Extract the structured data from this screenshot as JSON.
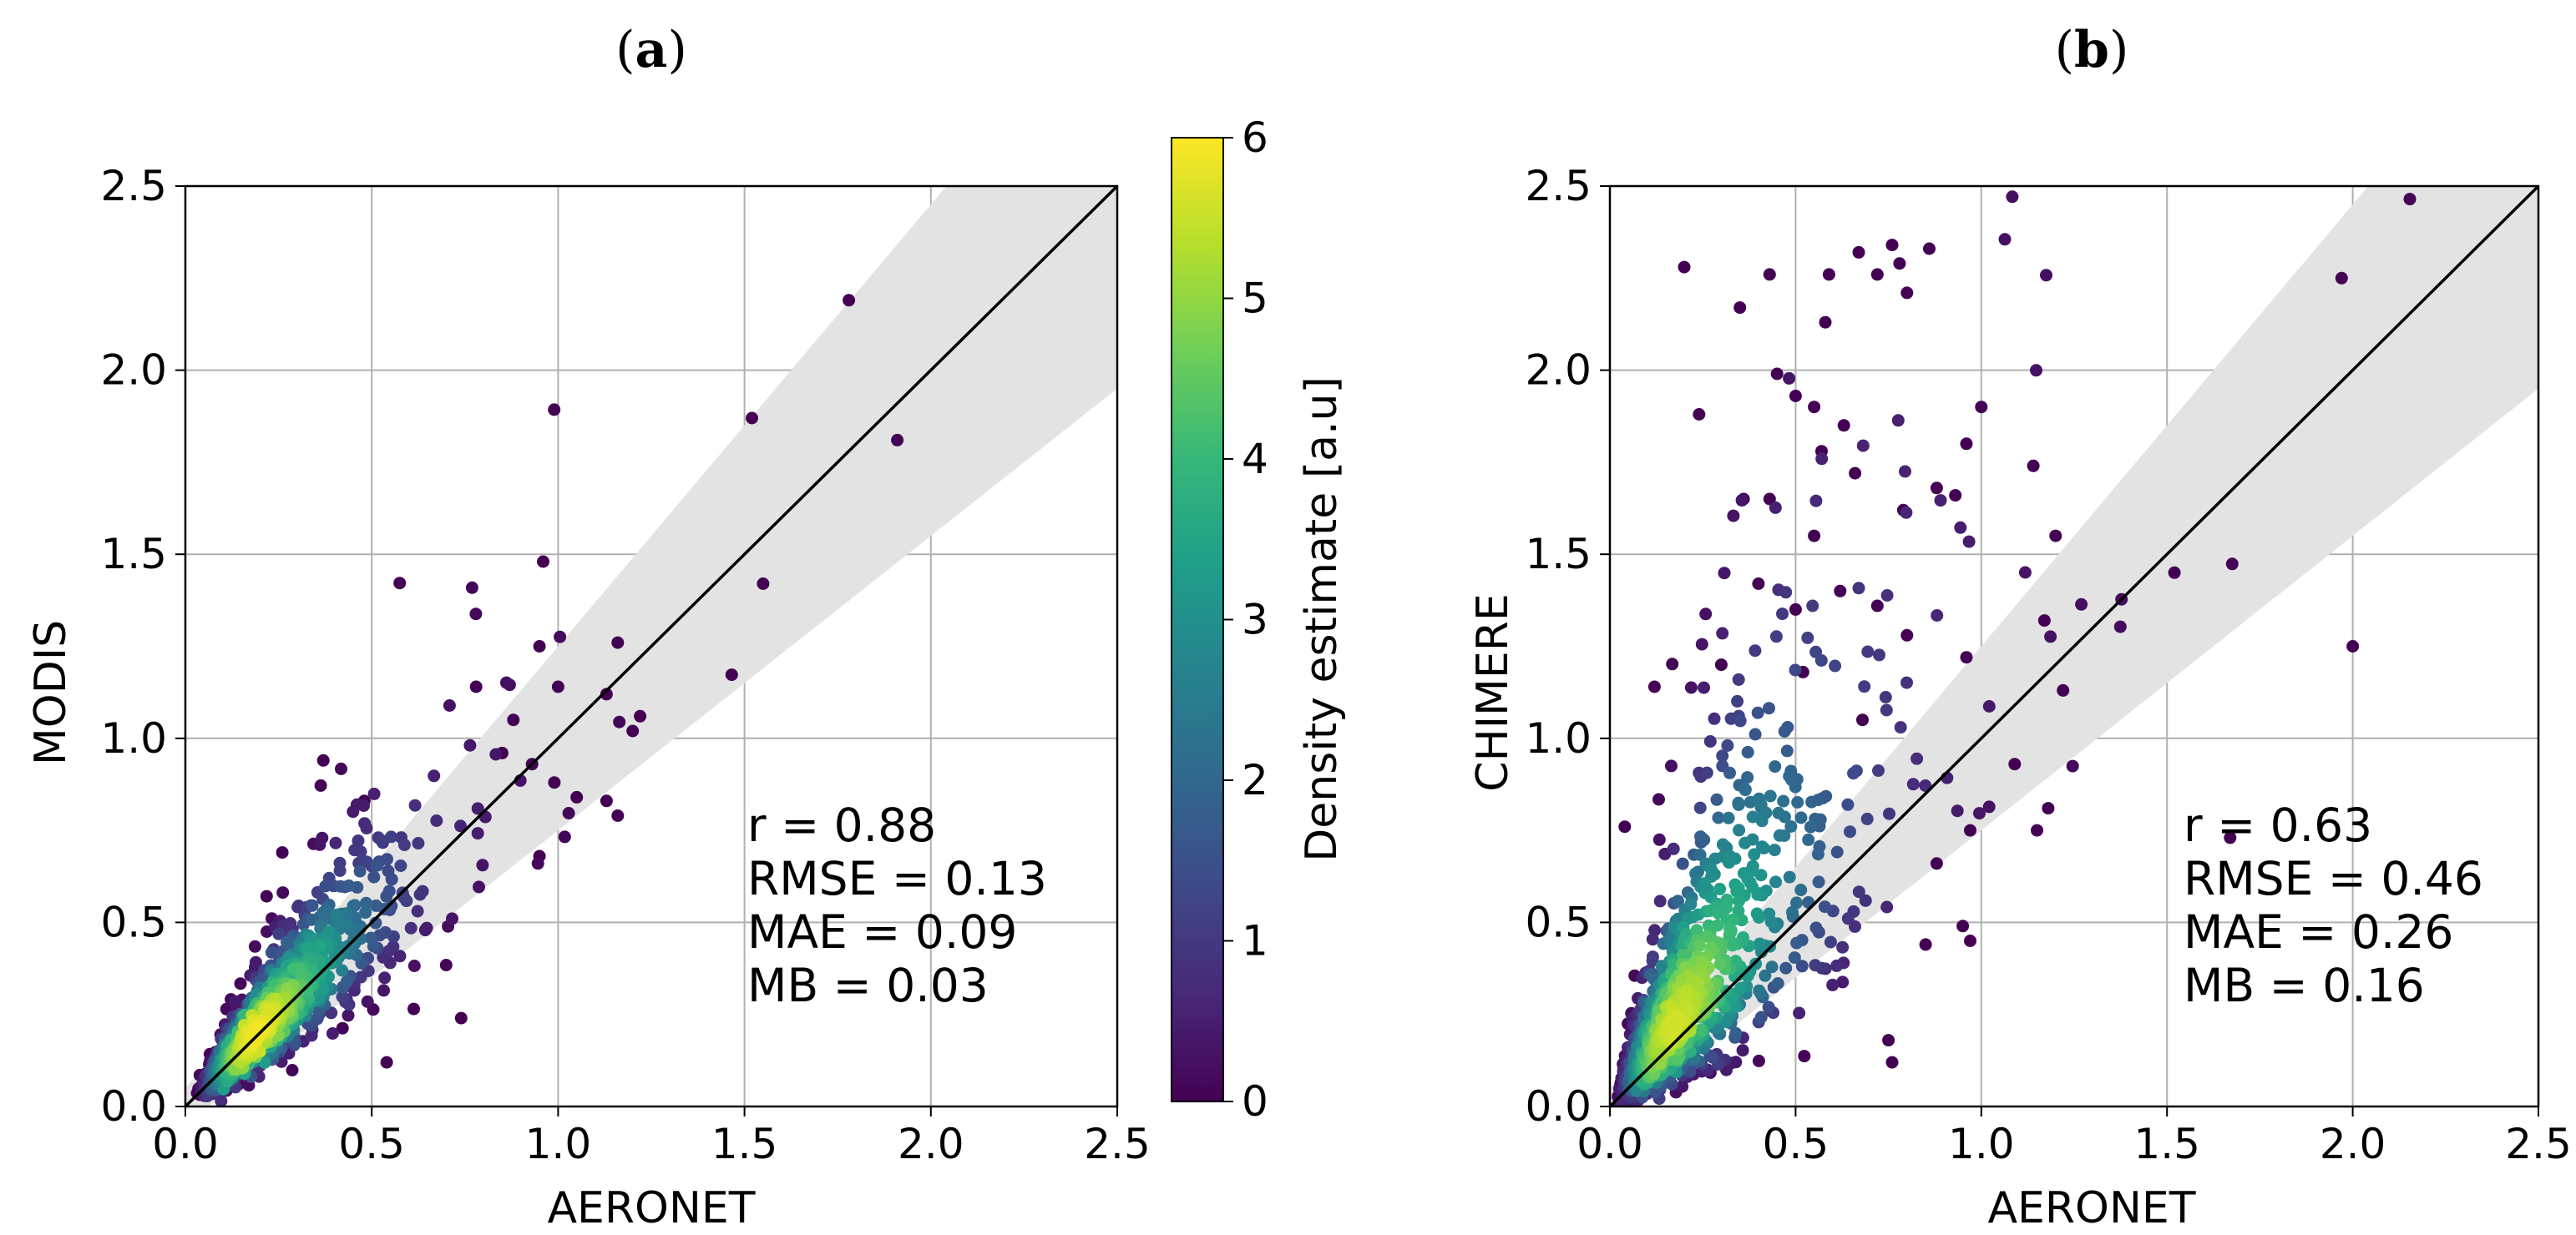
{
  "figure": {
    "colorbar": {
      "label": "Density estimate [a.u]",
      "ticks": [
        "0",
        "1",
        "2",
        "3",
        "4",
        "5",
        "6"
      ],
      "range": [
        0,
        6
      ],
      "colors": [
        "#440154",
        "#482878",
        "#3e4989",
        "#31688e",
        "#26828e",
        "#1f9e89",
        "#35b779",
        "#6ece58",
        "#b5de2b",
        "#fde725"
      ]
    },
    "style": {
      "grid_color": "#b0b0b0",
      "band_color": "#e3e3e3",
      "line_color": "#000000"
    }
  },
  "chart_data": [
    {
      "type": "scatter",
      "panel_label": "(a)",
      "panel_letter": "a",
      "xlabel": "AERONET",
      "ylabel": "MODIS",
      "xlim": [
        0,
        2.5
      ],
      "ylim": [
        0,
        2.5
      ],
      "xticks": [
        "0.0",
        "0.5",
        "1.0",
        "1.5",
        "2.0",
        "2.5"
      ],
      "yticks": [
        "0.0",
        "0.5",
        "1.0",
        "1.5",
        "2.0",
        "2.5"
      ],
      "grid": true,
      "reference_line": "1:1",
      "envelope": "±(0.05 + 0.2·x)",
      "stats": [
        "r = 0.88",
        "RMSE = 0.13",
        "MAE = 0.09",
        "MB = 0.03"
      ],
      "colormap": "viridis (density)",
      "cluster": {
        "n": 1300,
        "seed": 11,
        "xmu": -1.65,
        "xsig": 0.6,
        "ysig": 0.28,
        "ymul": 1.04,
        "dmax": 5.9
      },
      "outliers": [
        [
          1.78,
          2.19
        ],
        [
          1.52,
          1.87
        ],
        [
          1.91,
          1.81
        ],
        [
          1.55,
          1.42
        ],
        [
          0.96,
          1.48
        ],
        [
          1.16,
          1.26
        ],
        [
          0.95,
          1.25
        ],
        [
          1.22,
          1.06
        ],
        [
          1.2,
          1.02
        ],
        [
          1.13,
          1.12
        ],
        [
          1.0,
          1.14
        ],
        [
          0.78,
          1.14
        ],
        [
          1.05,
          0.84
        ],
        [
          1.13,
          0.83
        ],
        [
          1.16,
          0.79
        ],
        [
          0.99,
          0.88
        ],
        [
          0.93,
          0.93
        ],
        [
          0.37,
          0.94
        ],
        [
          0.95,
          0.68
        ],
        [
          0.48,
          0.83
        ],
        [
          0.74,
          0.24
        ],
        [
          0.54,
          0.12
        ],
        [
          0.26,
          0.69
        ],
        [
          0.85,
          0.96
        ],
        [
          0.88,
          1.05
        ]
      ]
    },
    {
      "type": "scatter",
      "panel_label": "(b)",
      "panel_letter": "b",
      "xlabel": "AERONET",
      "ylabel": "CHIMERE",
      "xlim": [
        0,
        2.5
      ],
      "ylim": [
        0,
        2.5
      ],
      "xticks": [
        "0.0",
        "0.5",
        "1.0",
        "1.5",
        "2.0",
        "2.5"
      ],
      "yticks": [
        "0.0",
        "0.5",
        "1.0",
        "1.5",
        "2.0",
        "2.5"
      ],
      "grid": true,
      "reference_line": "1:1",
      "envelope": "±(0.05 + 0.2·x)",
      "stats": [
        "r = 0.63",
        "RMSE = 0.46",
        "MAE = 0.26",
        "MB = 0.16"
      ],
      "colormap": "viridis (density)",
      "cluster": {
        "n": 1100,
        "seed": 23,
        "xmu": -1.75,
        "xsig": 0.75,
        "ysig": 0.55,
        "ymul": 1.3,
        "dmax": 5.6
      },
      "outliers": [
        [
          0.2,
          2.28
        ],
        [
          0.35,
          2.17
        ],
        [
          0.43,
          2.26
        ],
        [
          0.58,
          2.13
        ],
        [
          0.67,
          2.32
        ],
        [
          0.72,
          2.26
        ],
        [
          0.76,
          2.34
        ],
        [
          0.78,
          2.29
        ],
        [
          0.8,
          2.21
        ],
        [
          0.86,
          2.33
        ],
        [
          0.59,
          2.26
        ],
        [
          0.24,
          1.88
        ],
        [
          0.45,
          1.99
        ],
        [
          0.5,
          1.93
        ],
        [
          0.55,
          1.9
        ],
        [
          0.63,
          1.85
        ],
        [
          0.36,
          1.65
        ],
        [
          0.43,
          1.65
        ],
        [
          0.57,
          1.78
        ],
        [
          0.66,
          1.72
        ],
        [
          0.79,
          1.62
        ],
        [
          0.88,
          1.68
        ],
        [
          0.93,
          1.66
        ],
        [
          0.96,
          1.8
        ],
        [
          1.0,
          1.9
        ],
        [
          1.14,
          1.74
        ],
        [
          1.2,
          1.55
        ],
        [
          1.17,
          1.32
        ],
        [
          1.52,
          1.45
        ],
        [
          1.97,
          2.25
        ],
        [
          2.0,
          1.25
        ],
        [
          1.67,
          0.73
        ],
        [
          1.22,
          1.13
        ],
        [
          1.09,
          0.93
        ],
        [
          0.96,
          1.22
        ],
        [
          0.97,
          0.75
        ],
        [
          1.15,
          0.75
        ],
        [
          1.18,
          0.81
        ],
        [
          0.95,
          0.49
        ],
        [
          0.97,
          0.45
        ],
        [
          0.12,
          1.14
        ],
        [
          0.04,
          0.76
        ],
        [
          0.75,
          0.18
        ],
        [
          0.76,
          0.12
        ],
        [
          0.85,
          0.44
        ],
        [
          0.88,
          0.66
        ],
        [
          0.5,
          1.35
        ],
        [
          0.62,
          1.4
        ],
        [
          0.72,
          1.36
        ],
        [
          0.4,
          1.42
        ],
        [
          0.3,
          1.2
        ],
        [
          0.55,
          1.55
        ],
        [
          0.68,
          1.05
        ],
        [
          0.8,
          1.28
        ],
        [
          0.52,
          1.18
        ]
      ]
    }
  ]
}
